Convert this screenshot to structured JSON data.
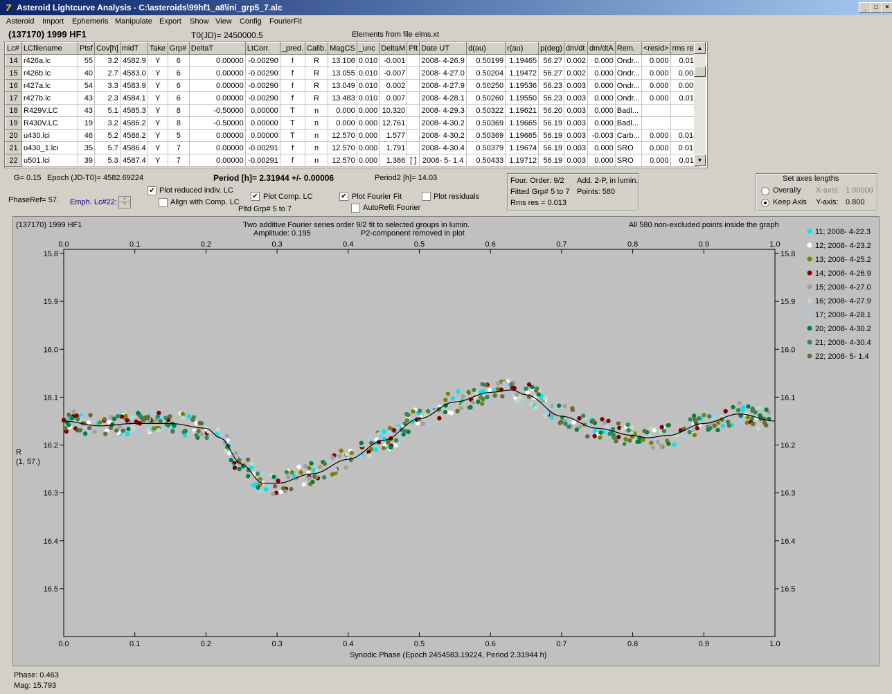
{
  "window": {
    "title": "Asteroid Lightcurve Analysis - C:\\asteroids\\99hf1_a8\\ini_grp5_7.alc",
    "app_icon": "app-logo-icon",
    "buttons": [
      "_",
      "□",
      "×"
    ]
  },
  "menu": [
    "Asteroid",
    "Import",
    "Ephemeris",
    "Manipulate",
    "Export",
    "Show",
    "View",
    "Config",
    "FourierFit"
  ],
  "header": {
    "asteroid_name": "(137170) 1999 HF1",
    "t0": "T0(JD)= 2450000.5",
    "elements": "Elements from file elms.xt"
  },
  "table": {
    "columns": [
      "Lc#",
      "LCfilename",
      "Ptsf",
      "Cov[h]",
      "midT",
      "Take",
      "Grp#",
      "DeltaT",
      "LtCorr.",
      "_pred.",
      "Calib.",
      "MagCS",
      "_unc",
      "DeltaM",
      "Plt",
      "Date UT",
      "d(au)",
      "r(au)",
      "p(deg)",
      "dm/dt",
      "dm/dtA",
      "Rem.",
      "<resid>",
      "rms res"
    ],
    "rows": [
      [
        "14",
        "r426a.lc",
        "55",
        "3.2",
        "4582.9",
        "Y",
        "6",
        "0.00000",
        "-0.00290",
        "f",
        "R",
        "13.106",
        "0.010",
        "-0.001",
        "",
        "2008- 4-26.9",
        "0.50199",
        "1.19465",
        "56.27",
        "0.002",
        "0.000",
        "Ondr...",
        "0.000",
        "0.011"
      ],
      [
        "15",
        "r426b.lc",
        "40",
        "2.7",
        "4583.0",
        "Y",
        "6",
        "0.00000",
        "-0.00290",
        "f",
        "R",
        "13.055",
        "0.010",
        "-0.007",
        "",
        "2008- 4-27.0",
        "0.50204",
        "1.19472",
        "56.27",
        "0.002",
        "0.000",
        "Ondr...",
        "0.000",
        "0.008"
      ],
      [
        "16",
        "r427a.lc",
        "54",
        "3.3",
        "4583.9",
        "Y",
        "6",
        "0.00000",
        "-0.00290",
        "f",
        "R",
        "13.049",
        "0.010",
        "0.002",
        "",
        "2008- 4-27.9",
        "0.50250",
        "1.19536",
        "56.23",
        "0.003",
        "0.000",
        "Ondr...",
        "0.000",
        "0.009"
      ],
      [
        "17",
        "r427b.lc",
        "43",
        "2.3",
        "4584.1",
        "Y",
        "6",
        "0.00000",
        "-0.00290",
        "f",
        "R",
        "13.483",
        "0.010",
        "0.007",
        "",
        "2008- 4-28.1",
        "0.50260",
        "1.19550",
        "56.23",
        "0.003",
        "0.000",
        "Ondr...",
        "0.000",
        "0.011"
      ],
      [
        "18",
        "R429V.LC",
        "43",
        "5.1",
        "4585.3",
        "Y",
        "8",
        "-0.50000",
        "0.00000",
        "T",
        "n",
        "0.000",
        "0.000",
        "10.320",
        "",
        "2008- 4-29.3",
        "0.50322",
        "1.19621",
        "56.20",
        "0.003",
        "0.000",
        "Badl...",
        "",
        ""
      ],
      [
        "19",
        "R430V.LC",
        "19",
        "3.2",
        "4586.2",
        "Y",
        "8",
        "-0.50000",
        "0.00000",
        "T",
        "n",
        "0.000",
        "0.000",
        "12.761",
        "",
        "2008- 4-30.2",
        "0.50369",
        "1.19665",
        "56.19",
        "0.003",
        "0.000",
        "Badl...",
        "",
        ""
      ],
      [
        "20",
        "u430.lci",
        "46",
        "5.2",
        "4586.2",
        "Y",
        "5",
        "0.00000",
        "0.00000",
        "T",
        "n",
        "12.570",
        "0.000",
        "1.577",
        "",
        "2008- 4-30.2",
        "0.50369",
        "1.19665",
        "56.19",
        "0.003",
        "-0.003",
        "Carb...",
        "0.000",
        "0.014"
      ],
      [
        "21",
        "u430_1.lci",
        "35",
        "5.7",
        "4586.4",
        "Y",
        "7",
        "0.00000",
        "-0.00291",
        "f",
        "n",
        "12.570",
        "0.000",
        "1.791",
        "",
        "2008- 4-30.4",
        "0.50379",
        "1.19674",
        "56.19",
        "0.003",
        "0.000",
        "SRO",
        "0.000",
        "0.012"
      ],
      [
        "22",
        "u501.lci",
        "39",
        "5.3",
        "4587.4",
        "Y",
        "7",
        "0.00000",
        "-0.00291",
        "f",
        "n",
        "12.570",
        "0.000",
        "1.386",
        "[ ]",
        "2008- 5- 1.4",
        "0.50433",
        "1.19712",
        "56.19",
        "0.003",
        "0.000",
        "SRO",
        "0.000",
        "0.011"
      ]
    ]
  },
  "params": {
    "g": "G= 0.15",
    "epoch": "Epoch (JD-T0)= 4582.69224",
    "period": "Period [h]= 2.31944 +/- 0.00006",
    "period2": "Period2 [h]= 14.03",
    "phaseref": "PhaseRef= 57.",
    "emph": "Emph. Lc#22:"
  },
  "options": {
    "plot_reduced": "Plot reduced indiv. LC",
    "align_comp": "Align with Comp. LC",
    "plot_comp": "Plot Comp. LC",
    "pltd_grp": "Pltd Grp#  5  to  7",
    "plot_fourier": "Plot Fourier Fit",
    "autorefit": "AutoRefit Fourier",
    "plot_resid": "Plot residuals"
  },
  "fourier_info": {
    "order": "Four. Order:  9/2",
    "add": "Add. 2-P, in lumin.",
    "fitted": "Fitted Grp# 5 to 7",
    "points": "Points: 580",
    "rms": "Rms res     = 0.013"
  },
  "axes_panel": {
    "title": "Set axes lengths",
    "overally": "Overally",
    "keep_axis": "Keep Axis",
    "xaxis_label": "X-axis:",
    "xaxis_value": "1.00000",
    "yaxis_label": "Y-axis:",
    "yaxis_value": "0.800"
  },
  "plot": {
    "title_left": "(137170) 1999 HF1",
    "title_center1": "Two additive Fourier series order 9/2 fit to selected groups in lumin.",
    "title_center2a": "Amplitude: 0.195",
    "title_center2b": "P2-component removed in plot",
    "title_right": "All 580 non-excluded points inside the graph",
    "ylabel1": "R",
    "ylabel2": "(1, 57.)",
    "xlabel": "Synodic Phase (Epoch 2454583.19224, Period 2.31944 h)"
  },
  "status": {
    "phase": "Phase:  0.463",
    "mag": "Mag:    15.793"
  },
  "chart_data": {
    "type": "scatter",
    "title": "Two additive Fourier series order 9/2 fit to selected groups in lumin.",
    "xlabel": "Synodic Phase (Epoch 2454583.19224, Period 2.31944 h)",
    "ylabel": "R",
    "xlim": [
      0.0,
      1.0
    ],
    "ylim": [
      15.8,
      16.6
    ],
    "y_inverted": true,
    "grid": false,
    "legend_placement": "right",
    "x_ticks": [
      "0.0",
      "0.1",
      "0.2",
      "0.3",
      "0.4",
      "0.5",
      "0.6",
      "0.7",
      "0.8",
      "0.9",
      "1.0"
    ],
    "y_ticks": [
      "15.8",
      "15.9",
      "16.0",
      "16.1",
      "16.2",
      "16.3",
      "16.4",
      "16.5"
    ],
    "fit_curve": {
      "x": [
        0.0,
        0.05,
        0.1,
        0.15,
        0.2,
        0.22,
        0.25,
        0.28,
        0.3,
        0.35,
        0.4,
        0.45,
        0.5,
        0.55,
        0.6,
        0.63,
        0.65,
        0.7,
        0.75,
        0.8,
        0.82,
        0.85,
        0.9,
        0.95,
        1.0
      ],
      "y": [
        16.15,
        16.16,
        16.155,
        16.155,
        16.165,
        16.185,
        16.24,
        16.28,
        16.28,
        16.26,
        16.23,
        16.19,
        16.145,
        16.11,
        16.09,
        16.085,
        16.095,
        16.14,
        16.165,
        16.18,
        16.185,
        16.18,
        16.155,
        16.135,
        16.15
      ],
      "color": "#000000"
    },
    "series": [
      {
        "name": "11; 2008- 4-22.3",
        "color": "#00e5ee"
      },
      {
        "name": "12; 2008- 4-23.2",
        "color": "#ffffff"
      },
      {
        "name": "13; 2008- 4-25.2",
        "color": "#808000"
      },
      {
        "name": "14; 2008- 4-26.9",
        "color": "#800000"
      },
      {
        "name": "15; 2008- 4-27.0",
        "color": "#a0a0a0"
      },
      {
        "name": "16; 2008- 4-27.9",
        "color": "#c0dcc0"
      },
      {
        "name": "17; 2008- 4-28.1",
        "color": "#a6caf0"
      },
      {
        "name": "20; 2008- 4-30.2",
        "color": "#008040"
      },
      {
        "name": "21; 2008- 4-30.4",
        "color": "#2e8b57"
      },
      {
        "name": "22; 2008- 5- 1.4",
        "color": "#6b6b3a"
      }
    ],
    "points_count": 580
  }
}
